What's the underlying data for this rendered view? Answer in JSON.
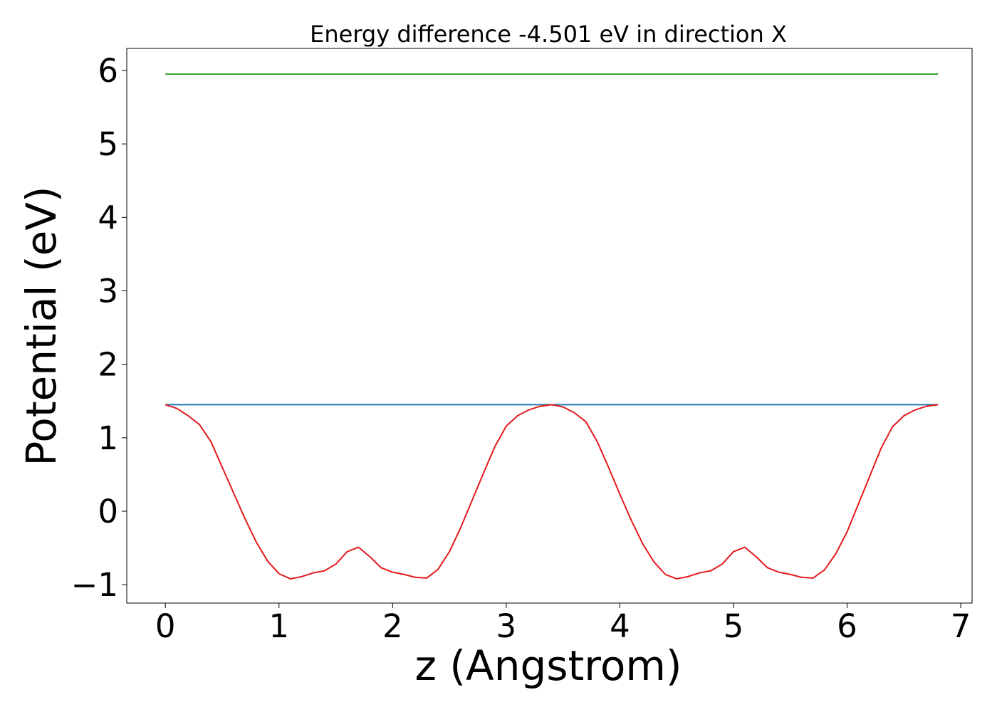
{
  "chart_data": {
    "type": "line",
    "title": "Energy difference -4.501 eV in direction X",
    "xlabel": "z (Angstrom)",
    "ylabel": "Potential (eV)",
    "xlim": [
      -0.34,
      7.1
    ],
    "ylim": [
      -1.25,
      6.3
    ],
    "xticks": [
      0,
      1,
      2,
      3,
      4,
      5,
      6,
      7
    ],
    "xtick_labels": [
      "0",
      "1",
      "2",
      "3",
      "4",
      "5",
      "6",
      "7"
    ],
    "yticks": [
      -1,
      0,
      1,
      2,
      3,
      4,
      5,
      6
    ],
    "ytick_labels": [
      "−1",
      "0",
      "1",
      "2",
      "3",
      "4",
      "5",
      "6"
    ],
    "grid": false,
    "legend": "none",
    "series": [
      {
        "color": "#2ca02c",
        "x": [
          0,
          6.8
        ],
        "y": [
          5.95,
          5.95
        ]
      },
      {
        "color": "#1f77b4",
        "x": [
          0,
          6.8
        ],
        "y": [
          1.45,
          1.45
        ]
      },
      {
        "color": "#e31a1c",
        "x": [
          0,
          0.1,
          0.2,
          0.3,
          0.4,
          0.5,
          0.6,
          0.7,
          0.8,
          0.9,
          1.0,
          1.1,
          1.2,
          1.3,
          1.4,
          1.5,
          1.6,
          1.7,
          1.8,
          1.9,
          2.0,
          2.1,
          2.2,
          2.3,
          2.4,
          2.5,
          2.6,
          2.7,
          2.8,
          2.9,
          3.0,
          3.1,
          3.2,
          3.3,
          3.4,
          3.5,
          3.6,
          3.7,
          3.8,
          3.9,
          4.0,
          4.1,
          4.2,
          4.3,
          4.4,
          4.5,
          4.6,
          4.7,
          4.8,
          4.9,
          5.0,
          5.1,
          5.2,
          5.3,
          5.4,
          5.5,
          5.6,
          5.7,
          5.8,
          5.9,
          6.0,
          6.1,
          6.2,
          6.3,
          6.4,
          6.5,
          6.6,
          6.7,
          6.8
        ],
        "y": [
          1.45,
          1.4,
          1.3,
          1.18,
          0.95,
          0.6,
          0.25,
          -0.1,
          -0.42,
          -0.68,
          -0.85,
          -0.92,
          -0.89,
          -0.84,
          -0.81,
          -0.72,
          -0.55,
          -0.49,
          -0.62,
          -0.77,
          -0.83,
          -0.86,
          -0.9,
          -0.91,
          -0.79,
          -0.55,
          -0.22,
          0.15,
          0.52,
          0.88,
          1.16,
          1.3,
          1.38,
          1.43,
          1.45,
          1.42,
          1.34,
          1.22,
          0.95,
          0.6,
          0.23,
          -0.12,
          -0.44,
          -0.69,
          -0.86,
          -0.92,
          -0.89,
          -0.84,
          -0.81,
          -0.72,
          -0.55,
          -0.49,
          -0.62,
          -0.77,
          -0.83,
          -0.86,
          -0.9,
          -0.91,
          -0.8,
          -0.58,
          -0.28,
          0.1,
          0.48,
          0.86,
          1.15,
          1.3,
          1.38,
          1.43,
          1.45
        ]
      }
    ]
  }
}
